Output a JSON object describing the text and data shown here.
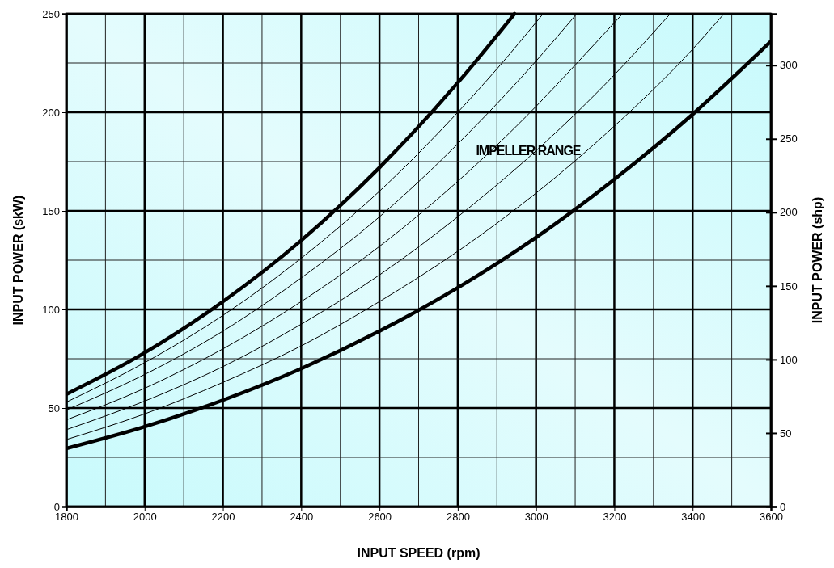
{
  "chart_data": {
    "type": "line",
    "xlabel": "INPUT SPEED (rpm)",
    "ylabel": "INPUT POWER (skW)",
    "y2label": "INPUT POWER (shp)",
    "xlim": [
      1800,
      3600
    ],
    "xticks": [
      1800,
      2000,
      2200,
      2400,
      2600,
      2800,
      3000,
      3200,
      3400,
      3600
    ],
    "ylim": [
      0,
      250
    ],
    "yticks": [
      0,
      50,
      100,
      150,
      200,
      250
    ],
    "y2lim": [
      0,
      335
    ],
    "y2ticks": [
      0,
      50,
      100,
      150,
      200,
      250,
      300
    ],
    "grid": true,
    "marker": "none",
    "line_style": "solid",
    "annotations": [
      {
        "text": "IMPELLER RANGE",
        "x": 2980,
        "y": 180
      }
    ],
    "series": [
      {
        "color": "#000000",
        "x": [
          1800,
          2000,
          2200,
          2400,
          2600,
          2800,
          2945
        ],
        "values": [
          57,
          78,
          104,
          135,
          172,
          215,
          250
        ]
      },
      {
        "color": "#000000",
        "x": [
          1800,
          2000,
          2200,
          2400,
          2600,
          2800,
          2900,
          3018
        ],
        "values": [
          53,
          73,
          97,
          126,
          160,
          200,
          222,
          250
        ]
      },
      {
        "color": "#000000",
        "x": [
          1800,
          2000,
          2200,
          2400,
          2600,
          2800,
          3000,
          3104
        ],
        "values": [
          49,
          67,
          89,
          116,
          147,
          184,
          226,
          250
        ]
      },
      {
        "color": "#000000",
        "x": [
          1800,
          2000,
          2200,
          2400,
          2600,
          2800,
          3000,
          3100,
          3221
        ],
        "values": [
          44,
          60,
          80,
          104,
          132,
          165,
          203,
          224,
          250
        ]
      },
      {
        "color": "#000000",
        "x": [
          1800,
          2000,
          2200,
          2400,
          2600,
          2800,
          3000,
          3200,
          3343
        ],
        "values": [
          39,
          53.5,
          71,
          92.5,
          117.5,
          147,
          180.5,
          219,
          250
        ]
      },
      {
        "color": "#000000",
        "x": [
          1800,
          2000,
          2200,
          2400,
          2600,
          2800,
          3000,
          3200,
          3400,
          3480
        ],
        "values": [
          34,
          47,
          63,
          81.5,
          104,
          129.5,
          159,
          193,
          232,
          250
        ]
      },
      {
        "color": "#000000",
        "x": [
          1800,
          2000,
          2200,
          2400,
          2600,
          2800,
          3000,
          3200,
          3400,
          3600
        ],
        "values": [
          29.5,
          40.5,
          54,
          70,
          89,
          111,
          136.5,
          166,
          199,
          236
        ]
      }
    ]
  }
}
